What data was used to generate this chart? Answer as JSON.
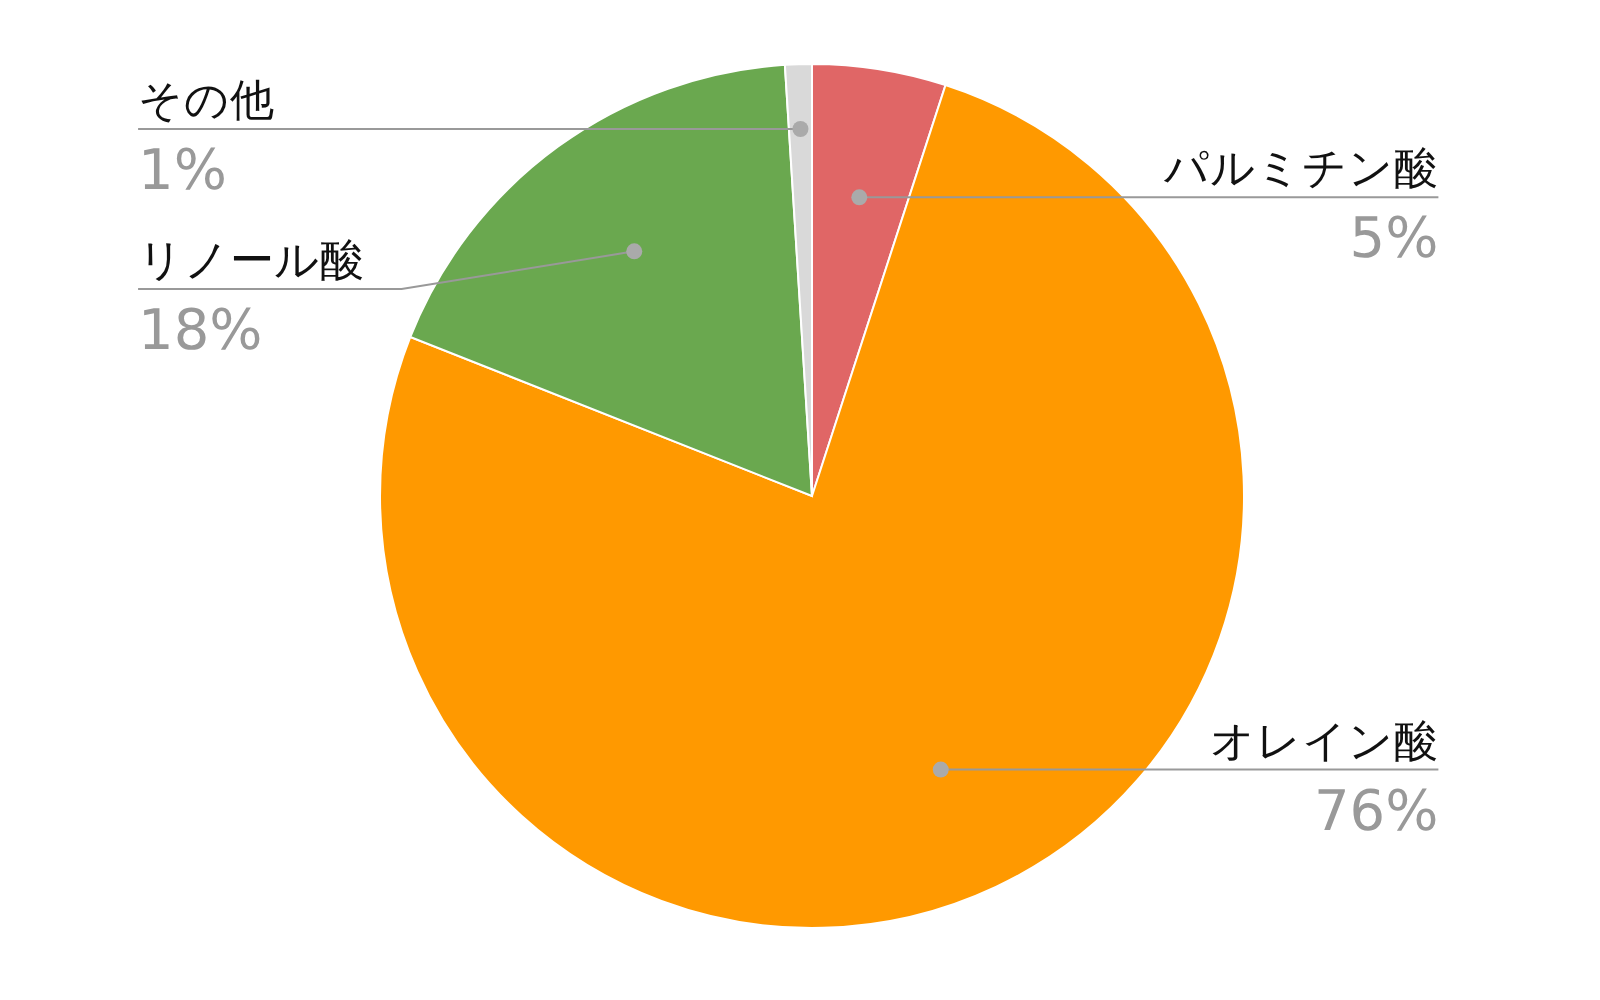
{
  "chart_data": {
    "type": "pie",
    "categories": [
      "パルミチン酸",
      "オレイン酸",
      "リノール酸",
      "その他"
    ],
    "values": [
      5,
      76,
      18,
      1
    ],
    "colors": [
      "#e06666",
      "#ff9900",
      "#6aa84f",
      "#d9d9d9"
    ],
    "value_labels": [
      "5%",
      "76%",
      "18%",
      "1%"
    ]
  }
}
